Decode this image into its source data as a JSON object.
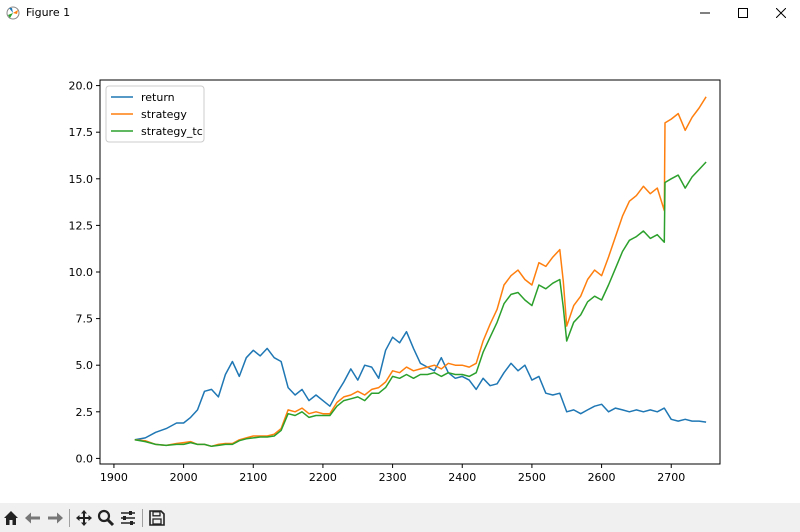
{
  "window": {
    "title": "Figure 1"
  },
  "toolbar": {
    "buttons": [
      "home-icon",
      "back-arrow-icon",
      "forward-arrow-icon",
      "pan-icon",
      "zoom-icon",
      "subplots-icon",
      "save-icon"
    ]
  },
  "chart_data": {
    "type": "line",
    "title": "",
    "xlabel": "",
    "ylabel": "",
    "xlim": [
      1880,
      2770
    ],
    "ylim": [
      -0.3,
      20.3
    ],
    "xticks": [
      1900,
      2000,
      2100,
      2200,
      2300,
      2400,
      2500,
      2600,
      2700
    ],
    "yticks": [
      0.0,
      2.5,
      5.0,
      7.5,
      10.0,
      12.5,
      15.0,
      17.5,
      20.0
    ],
    "ytick_labels": [
      "0.0",
      "2.5",
      "5.0",
      "7.5",
      "10.0",
      "12.5",
      "15.0",
      "17.5",
      "20.0"
    ],
    "grid": false,
    "legend_position": "upper left",
    "series": [
      {
        "name": "return",
        "color": "#1f77b4",
        "x": [
          1930,
          1945,
          1960,
          1975,
          1990,
          2000,
          2010,
          2020,
          2030,
          2040,
          2050,
          2060,
          2070,
          2080,
          2090,
          2100,
          2110,
          2120,
          2130,
          2140,
          2150,
          2160,
          2170,
          2180,
          2190,
          2200,
          2210,
          2220,
          2230,
          2240,
          2250,
          2260,
          2270,
          2280,
          2290,
          2300,
          2310,
          2320,
          2330,
          2340,
          2350,
          2360,
          2370,
          2380,
          2390,
          2400,
          2410,
          2420,
          2430,
          2440,
          2450,
          2460,
          2470,
          2480,
          2490,
          2500,
          2510,
          2520,
          2530,
          2540,
          2550,
          2560,
          2570,
          2580,
          2590,
          2600,
          2610,
          2620,
          2630,
          2640,
          2650,
          2660,
          2670,
          2680,
          2690,
          2700,
          2710,
          2720,
          2730,
          2740,
          2750
        ],
        "y": [
          1.0,
          1.1,
          1.4,
          1.6,
          1.9,
          1.9,
          2.2,
          2.6,
          3.6,
          3.7,
          3.3,
          4.5,
          5.2,
          4.4,
          5.4,
          5.8,
          5.5,
          5.9,
          5.4,
          5.2,
          3.8,
          3.4,
          3.7,
          3.1,
          3.4,
          3.1,
          2.8,
          3.5,
          4.1,
          4.8,
          4.2,
          5.0,
          4.9,
          4.3,
          5.8,
          6.5,
          6.2,
          6.8,
          5.9,
          5.1,
          4.9,
          4.7,
          5.4,
          4.6,
          4.3,
          4.4,
          4.2,
          3.7,
          4.3,
          3.9,
          4.0,
          4.6,
          5.1,
          4.7,
          5.0,
          4.2,
          4.4,
          3.5,
          3.4,
          3.5,
          2.5,
          2.6,
          2.4,
          2.6,
          2.8,
          2.9,
          2.5,
          2.7,
          2.6,
          2.5,
          2.6,
          2.5,
          2.6,
          2.5,
          2.7,
          2.1,
          2.0,
          2.1,
          2.0,
          2.0,
          1.95
        ]
      },
      {
        "name": "strategy",
        "color": "#ff7f0e",
        "x": [
          1930,
          1945,
          1960,
          1975,
          1990,
          2000,
          2010,
          2020,
          2030,
          2040,
          2050,
          2060,
          2070,
          2080,
          2090,
          2100,
          2110,
          2120,
          2130,
          2140,
          2150,
          2160,
          2170,
          2180,
          2190,
          2200,
          2210,
          2220,
          2230,
          2240,
          2250,
          2260,
          2270,
          2280,
          2290,
          2300,
          2310,
          2320,
          2330,
          2340,
          2350,
          2360,
          2370,
          2380,
          2390,
          2400,
          2410,
          2420,
          2430,
          2440,
          2450,
          2460,
          2470,
          2480,
          2490,
          2500,
          2510,
          2520,
          2530,
          2540,
          2545,
          2550,
          2560,
          2570,
          2580,
          2590,
          2600,
          2610,
          2620,
          2630,
          2640,
          2650,
          2660,
          2670,
          2680,
          2690,
          2691,
          2700,
          2710,
          2720,
          2730,
          2740,
          2750
        ],
        "y": [
          1.0,
          0.95,
          0.75,
          0.7,
          0.8,
          0.85,
          0.9,
          0.75,
          0.75,
          0.65,
          0.75,
          0.8,
          0.8,
          1.0,
          1.1,
          1.2,
          1.2,
          1.2,
          1.3,
          1.6,
          2.6,
          2.5,
          2.7,
          2.4,
          2.5,
          2.4,
          2.4,
          3.0,
          3.3,
          3.4,
          3.6,
          3.4,
          3.7,
          3.8,
          4.1,
          4.7,
          4.6,
          4.9,
          4.7,
          4.8,
          4.9,
          5.0,
          4.8,
          5.1,
          5.0,
          5.0,
          4.9,
          5.1,
          6.3,
          7.2,
          8.0,
          9.3,
          9.8,
          10.1,
          9.6,
          9.3,
          10.5,
          10.3,
          10.8,
          11.2,
          9.5,
          7.1,
          8.2,
          8.7,
          9.6,
          10.1,
          9.8,
          10.8,
          11.9,
          13.0,
          13.8,
          14.1,
          14.6,
          14.2,
          14.5,
          13.3,
          18.0,
          18.2,
          18.5,
          17.6,
          18.3,
          18.8,
          19.4
        ]
      },
      {
        "name": "strategy_tc",
        "color": "#2ca02c",
        "x": [
          1930,
          1945,
          1960,
          1975,
          1990,
          2000,
          2010,
          2020,
          2030,
          2040,
          2050,
          2060,
          2070,
          2080,
          2090,
          2100,
          2110,
          2120,
          2130,
          2140,
          2150,
          2160,
          2170,
          2180,
          2190,
          2200,
          2210,
          2220,
          2230,
          2240,
          2250,
          2260,
          2270,
          2280,
          2290,
          2300,
          2310,
          2320,
          2330,
          2340,
          2350,
          2360,
          2370,
          2380,
          2390,
          2400,
          2410,
          2420,
          2430,
          2440,
          2450,
          2460,
          2470,
          2480,
          2490,
          2500,
          2510,
          2520,
          2530,
          2540,
          2545,
          2550,
          2560,
          2570,
          2580,
          2590,
          2600,
          2610,
          2620,
          2630,
          2640,
          2650,
          2660,
          2670,
          2680,
          2690,
          2691,
          2700,
          2710,
          2720,
          2730,
          2740,
          2750
        ],
        "y": [
          1.0,
          0.9,
          0.75,
          0.7,
          0.75,
          0.75,
          0.85,
          0.75,
          0.75,
          0.65,
          0.7,
          0.75,
          0.75,
          0.95,
          1.05,
          1.1,
          1.15,
          1.15,
          1.2,
          1.5,
          2.4,
          2.3,
          2.5,
          2.2,
          2.3,
          2.3,
          2.3,
          2.8,
          3.1,
          3.2,
          3.3,
          3.1,
          3.5,
          3.5,
          3.8,
          4.4,
          4.3,
          4.5,
          4.3,
          4.5,
          4.5,
          4.6,
          4.4,
          4.6,
          4.5,
          4.5,
          4.4,
          4.6,
          5.7,
          6.5,
          7.3,
          8.3,
          8.8,
          8.9,
          8.5,
          8.2,
          9.3,
          9.1,
          9.4,
          9.6,
          8.1,
          6.3,
          7.3,
          7.7,
          8.4,
          8.7,
          8.5,
          9.3,
          10.2,
          11.1,
          11.7,
          11.9,
          12.2,
          11.8,
          12.0,
          11.6,
          14.8,
          15.0,
          15.2,
          14.5,
          15.1,
          15.5,
          15.9
        ]
      }
    ]
  }
}
